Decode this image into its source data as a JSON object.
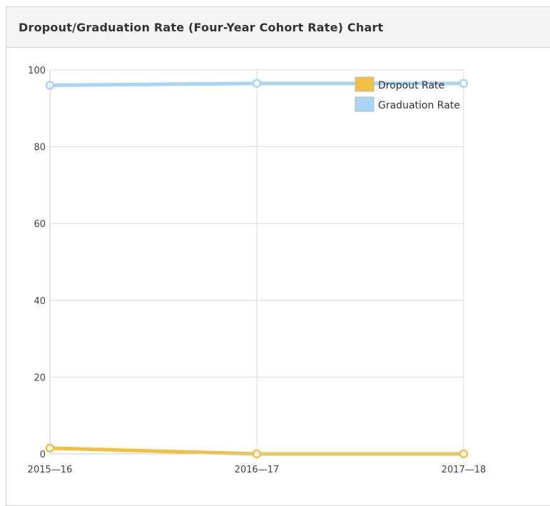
{
  "panel": {
    "title": "Dropout/Graduation Rate (Four-Year Cohort Rate) Chart"
  },
  "chart_data": {
    "type": "line",
    "title": "",
    "xlabel": "",
    "ylabel": "",
    "categories": [
      "2015—16",
      "2016—17",
      "2017—18"
    ],
    "ylim": [
      0,
      100
    ],
    "yticks": [
      0,
      20,
      40,
      60,
      80,
      100
    ],
    "grid": true,
    "legend_position": "top-right",
    "series": [
      {
        "name": "Dropout Rate",
        "values": [
          1.5,
          0.0,
          0.0
        ],
        "color": "#f0c040"
      },
      {
        "name": "Graduation Rate",
        "values": [
          96.0,
          96.5,
          96.5
        ],
        "color": "#a9d4f5"
      }
    ]
  }
}
